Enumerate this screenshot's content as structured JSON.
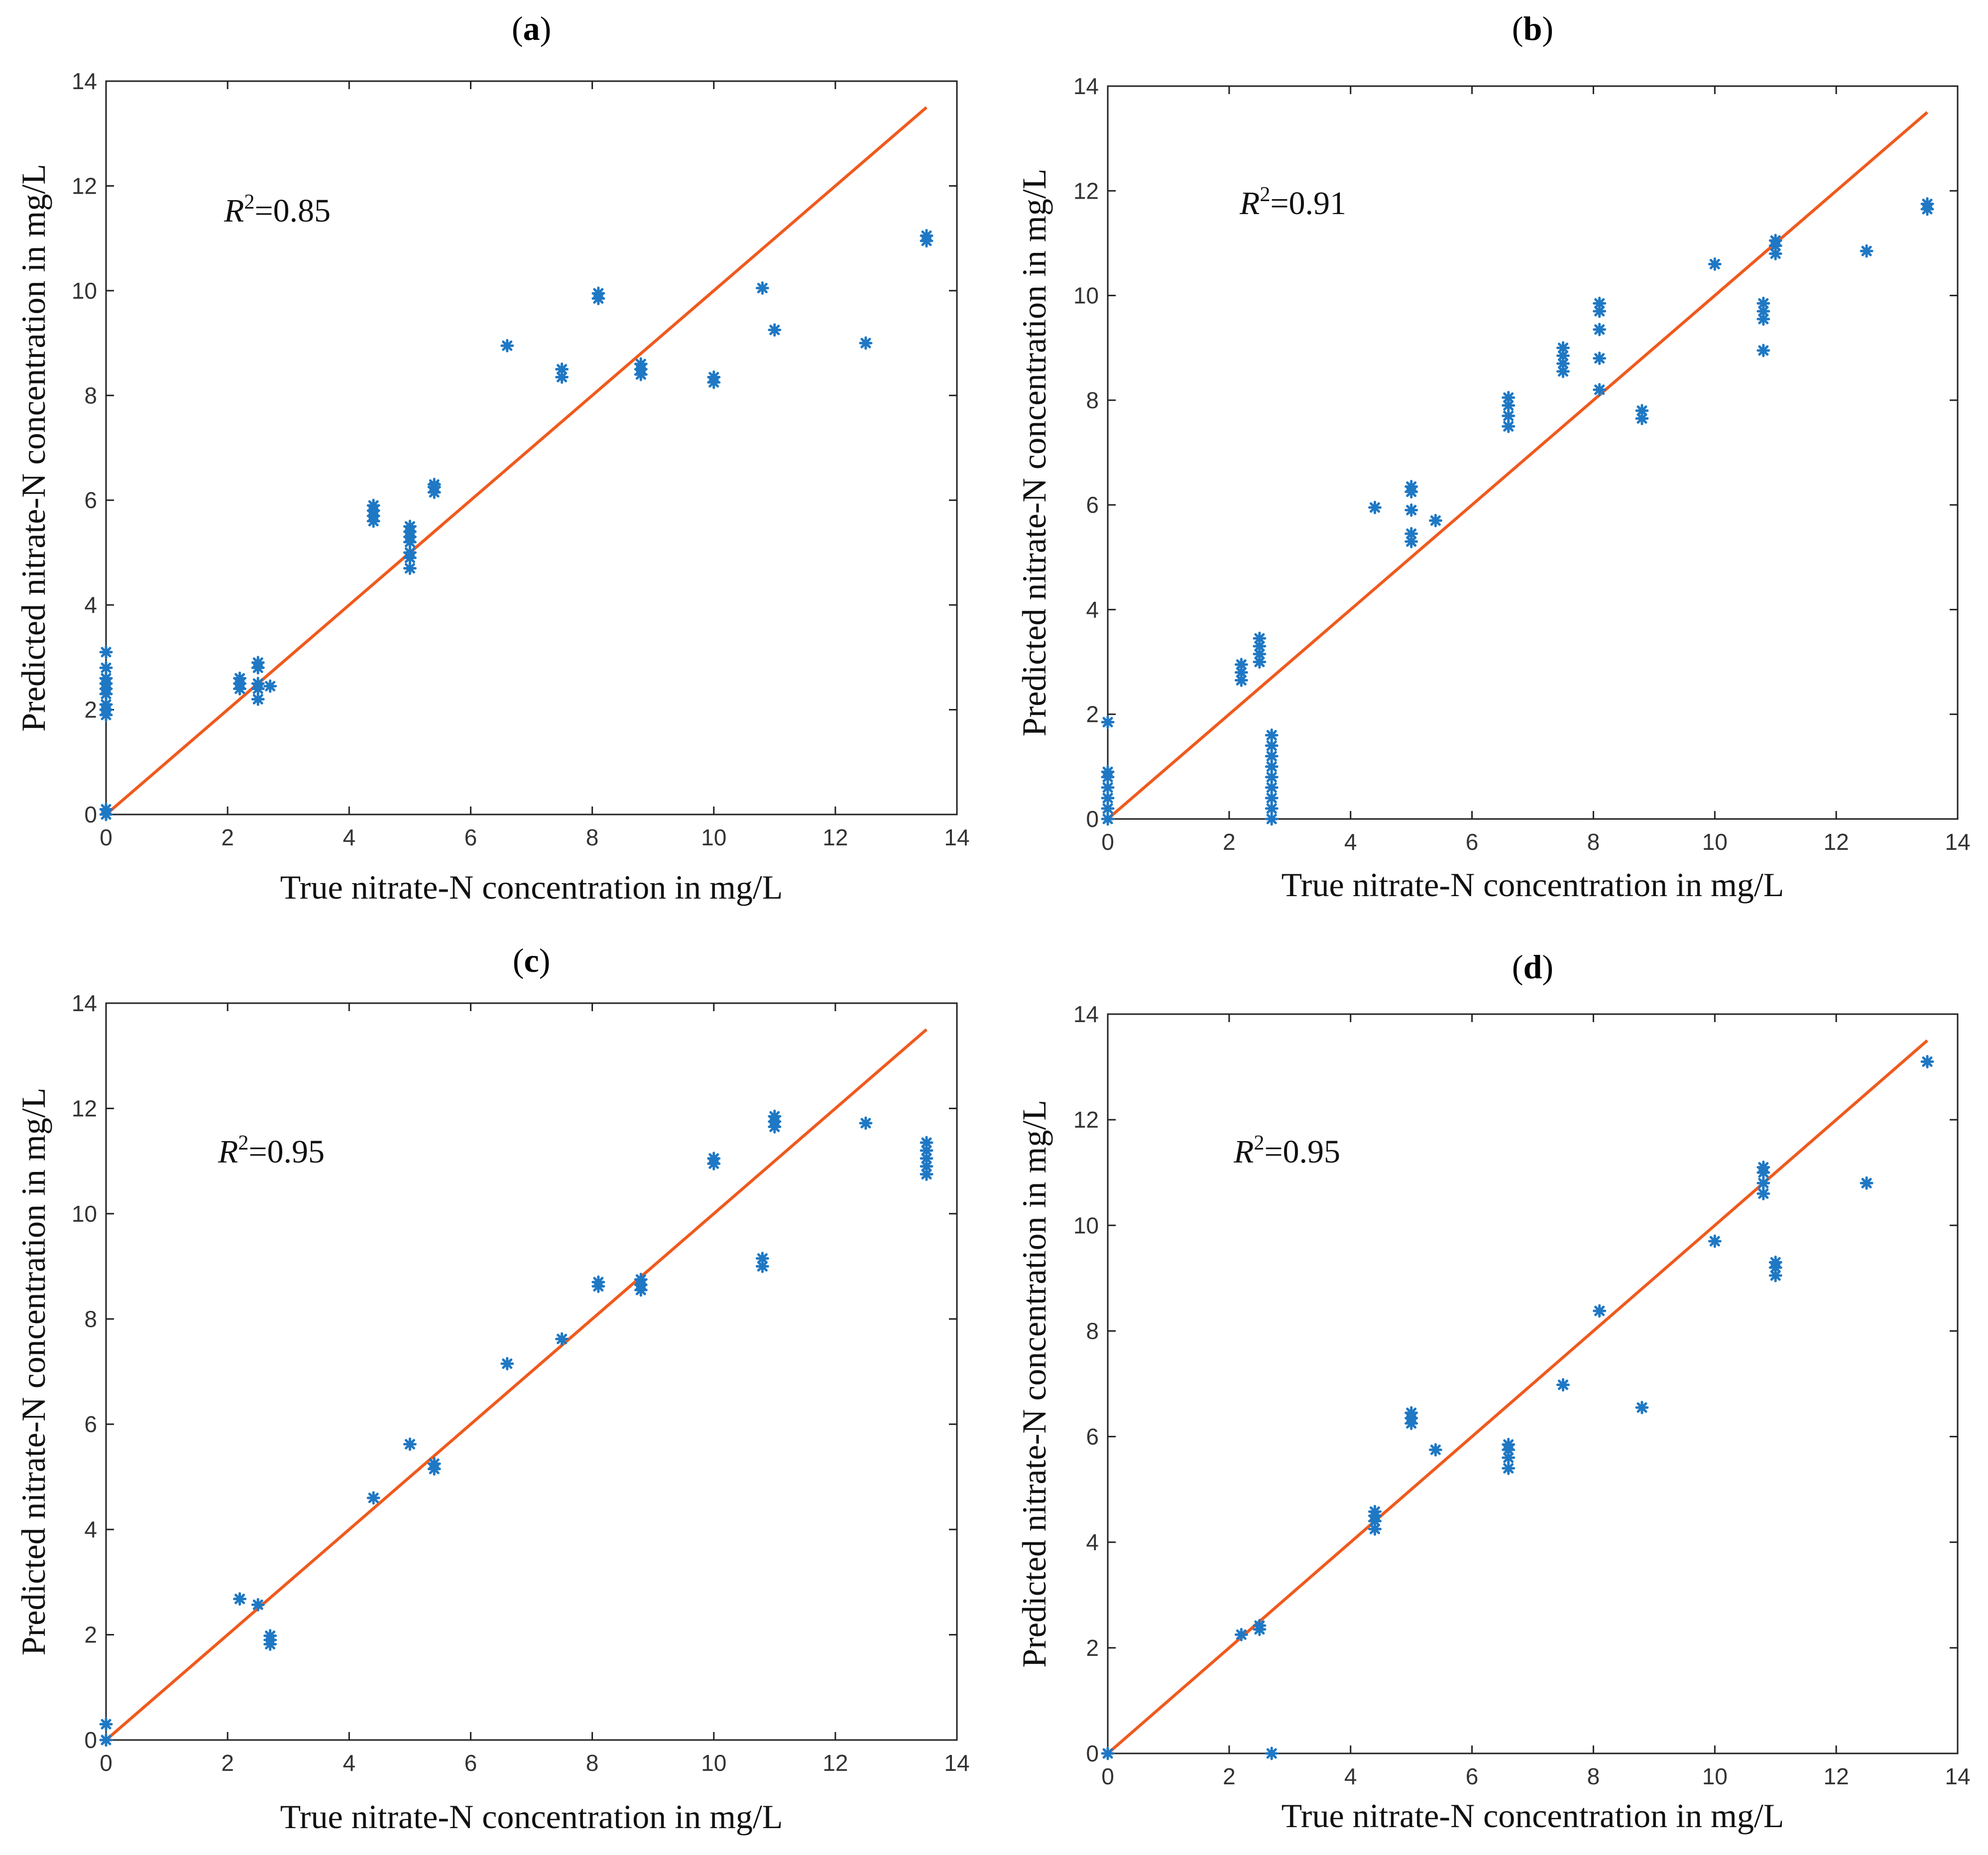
{
  "colors": {
    "fit_line": "#f05a1e",
    "markers": "#1f78c4",
    "axes": "#222222"
  },
  "chart_data": [
    {
      "type": "scatter",
      "panel_label": "a",
      "annotation": "R²=0.85",
      "annotation_var": "R",
      "annotation_sup": "2",
      "annotation_value": "=0.85",
      "xlabel": "True nitrate-N concentration in mg/L",
      "ylabel": "Predicted nitrate-N concentration in mg/L",
      "xlim": [
        0,
        14
      ],
      "ylim": [
        0,
        14
      ],
      "xticks": [
        0,
        2,
        4,
        6,
        8,
        10,
        12,
        14
      ],
      "yticks": [
        0,
        2,
        4,
        6,
        8,
        10,
        12,
        14
      ],
      "line": {
        "x": [
          0,
          13.5
        ],
        "y": [
          0,
          13.5
        ]
      },
      "points": [
        [
          0,
          0
        ],
        [
          0,
          0.1
        ],
        [
          0,
          1.9
        ],
        [
          0,
          2.0
        ],
        [
          0,
          2.1
        ],
        [
          0,
          2.3
        ],
        [
          0,
          2.4
        ],
        [
          0,
          2.5
        ],
        [
          0,
          2.6
        ],
        [
          0,
          2.8
        ],
        [
          0,
          3.1
        ],
        [
          2.2,
          2.4
        ],
        [
          2.2,
          2.5
        ],
        [
          2.2,
          2.6
        ],
        [
          2.5,
          2.2
        ],
        [
          2.5,
          2.4
        ],
        [
          2.5,
          2.5
        ],
        [
          2.5,
          2.8
        ],
        [
          2.5,
          2.9
        ],
        [
          2.7,
          2.45
        ],
        [
          4.4,
          5.6
        ],
        [
          4.4,
          5.7
        ],
        [
          4.4,
          5.8
        ],
        [
          4.4,
          5.9
        ],
        [
          5,
          4.7
        ],
        [
          5,
          4.9
        ],
        [
          5,
          5.0
        ],
        [
          5,
          5.2
        ],
        [
          5,
          5.3
        ],
        [
          5,
          5.4
        ],
        [
          5,
          5.5
        ],
        [
          5.4,
          6.15
        ],
        [
          5.4,
          6.25
        ],
        [
          5.4,
          6.3
        ],
        [
          6.6,
          8.95
        ],
        [
          7.5,
          8.35
        ],
        [
          7.5,
          8.5
        ],
        [
          8.1,
          9.85
        ],
        [
          8.1,
          9.95
        ],
        [
          8.8,
          8.4
        ],
        [
          8.8,
          8.5
        ],
        [
          8.8,
          8.6
        ],
        [
          10,
          8.25
        ],
        [
          10,
          8.35
        ],
        [
          10.8,
          10.05
        ],
        [
          11,
          9.25
        ],
        [
          12.5,
          9.0
        ],
        [
          13.5,
          10.95
        ],
        [
          13.5,
          11.05
        ]
      ]
    },
    {
      "type": "scatter",
      "panel_label": "b",
      "annotation": "R²=0.91",
      "annotation_var": "R",
      "annotation_sup": "2",
      "annotation_value": "=0.91",
      "xlabel": "True nitrate-N concentration in mg/L",
      "ylabel": "Predicted nitrate-N concentration in mg/L",
      "xlim": [
        0,
        14
      ],
      "ylim": [
        0,
        14
      ],
      "xticks": [
        0,
        2,
        4,
        6,
        8,
        10,
        12,
        14
      ],
      "yticks": [
        0,
        2,
        4,
        6,
        8,
        10,
        12,
        14
      ],
      "line": {
        "x": [
          0,
          13.5
        ],
        "y": [
          0,
          13.5
        ]
      },
      "points": [
        [
          0,
          0
        ],
        [
          0,
          0.2
        ],
        [
          0,
          0.4
        ],
        [
          0,
          0.6
        ],
        [
          0,
          0.8
        ],
        [
          0,
          0.9
        ],
        [
          0,
          1.85
        ],
        [
          2.2,
          2.65
        ],
        [
          2.2,
          2.8
        ],
        [
          2.2,
          2.95
        ],
        [
          2.5,
          3.0
        ],
        [
          2.5,
          3.15
        ],
        [
          2.5,
          3.3
        ],
        [
          2.5,
          3.45
        ],
        [
          2.7,
          0
        ],
        [
          2.7,
          0.2
        ],
        [
          2.7,
          0.4
        ],
        [
          2.7,
          0.6
        ],
        [
          2.7,
          0.8
        ],
        [
          2.7,
          1.0
        ],
        [
          2.7,
          1.2
        ],
        [
          2.7,
          1.4
        ],
        [
          2.7,
          1.6
        ],
        [
          4.4,
          5.95
        ],
        [
          5,
          5.3
        ],
        [
          5,
          5.45
        ],
        [
          5,
          5.9
        ],
        [
          5,
          6.25
        ],
        [
          5,
          6.35
        ],
        [
          5.4,
          5.7
        ],
        [
          6.6,
          7.5
        ],
        [
          6.6,
          7.7
        ],
        [
          6.6,
          7.9
        ],
        [
          6.6,
          8.05
        ],
        [
          7.5,
          8.55
        ],
        [
          7.5,
          8.7
        ],
        [
          7.5,
          8.85
        ],
        [
          7.5,
          9.0
        ],
        [
          8.1,
          8.2
        ],
        [
          8.1,
          8.8
        ],
        [
          8.1,
          9.35
        ],
        [
          8.1,
          9.7
        ],
        [
          8.1,
          9.85
        ],
        [
          8.8,
          7.65
        ],
        [
          8.8,
          7.8
        ],
        [
          10,
          10.6
        ],
        [
          10.8,
          8.95
        ],
        [
          10.8,
          9.55
        ],
        [
          10.8,
          9.7
        ],
        [
          10.8,
          9.85
        ],
        [
          11,
          10.8
        ],
        [
          11,
          10.95
        ],
        [
          11,
          11.05
        ],
        [
          12.5,
          10.85
        ],
        [
          13.5,
          11.65
        ],
        [
          13.5,
          11.75
        ]
      ]
    },
    {
      "type": "scatter",
      "panel_label": "c",
      "annotation": "R²=0.95",
      "annotation_var": "R",
      "annotation_sup": "2",
      "annotation_value": "=0.95",
      "xlabel": "True nitrate-N concentration in mg/L",
      "ylabel": "Predicted nitrate-N concentration in mg/L",
      "xlim": [
        0,
        14
      ],
      "ylim": [
        0,
        14
      ],
      "xticks": [
        0,
        2,
        4,
        6,
        8,
        10,
        12,
        14
      ],
      "yticks": [
        0,
        2,
        4,
        6,
        8,
        10,
        12,
        14
      ],
      "line": {
        "x": [
          0,
          13.5
        ],
        "y": [
          0,
          13.5
        ]
      },
      "points": [
        [
          0,
          0
        ],
        [
          0,
          0.3
        ],
        [
          2.2,
          2.68
        ],
        [
          2.5,
          2.57
        ],
        [
          2.7,
          1.82
        ],
        [
          2.7,
          1.9
        ],
        [
          2.7,
          1.98
        ],
        [
          4.4,
          4.6
        ],
        [
          5,
          5.62
        ],
        [
          5.4,
          5.15
        ],
        [
          5.4,
          5.25
        ],
        [
          6.6,
          7.15
        ],
        [
          7.5,
          7.62
        ],
        [
          8.1,
          8.62
        ],
        [
          8.1,
          8.7
        ],
        [
          8.8,
          8.55
        ],
        [
          8.8,
          8.65
        ],
        [
          8.8,
          8.75
        ],
        [
          10,
          10.95
        ],
        [
          10,
          11.05
        ],
        [
          10.8,
          9.0
        ],
        [
          10.8,
          9.15
        ],
        [
          11,
          11.65
        ],
        [
          11,
          11.75
        ],
        [
          11,
          11.85
        ],
        [
          12.5,
          11.72
        ],
        [
          13.5,
          10.75
        ],
        [
          13.5,
          10.9
        ],
        [
          13.5,
          11.05
        ],
        [
          13.5,
          11.2
        ],
        [
          13.5,
          11.35
        ]
      ]
    },
    {
      "type": "scatter",
      "panel_label": "d",
      "annotation": "R²=0.95",
      "annotation_var": "R",
      "annotation_sup": "2",
      "annotation_value": "=0.95",
      "xlabel": "True nitrate-N concentration in mg/L",
      "ylabel": "Predicted nitrate-N concentration in mg/L",
      "xlim": [
        0,
        14
      ],
      "ylim": [
        0,
        14
      ],
      "xticks": [
        0,
        2,
        4,
        6,
        8,
        10,
        12,
        14
      ],
      "yticks": [
        0,
        2,
        4,
        6,
        8,
        10,
        12,
        14
      ],
      "line": {
        "x": [
          0,
          13.5
        ],
        "y": [
          0,
          13.5
        ]
      },
      "points": [
        [
          0,
          0
        ],
        [
          2.2,
          2.25
        ],
        [
          2.5,
          2.35
        ],
        [
          2.5,
          2.42
        ],
        [
          2.7,
          0
        ],
        [
          4.4,
          4.25
        ],
        [
          4.4,
          4.4
        ],
        [
          4.4,
          4.5
        ],
        [
          4.4,
          4.58
        ],
        [
          5,
          6.25
        ],
        [
          5,
          6.35
        ],
        [
          5,
          6.45
        ],
        [
          5.4,
          5.75
        ],
        [
          6.6,
          5.4
        ],
        [
          6.6,
          5.6
        ],
        [
          6.6,
          5.75
        ],
        [
          6.6,
          5.85
        ],
        [
          7.5,
          6.98
        ],
        [
          8.1,
          8.38
        ],
        [
          8.8,
          6.55
        ],
        [
          10,
          9.7
        ],
        [
          10.8,
          10.6
        ],
        [
          10.8,
          10.8
        ],
        [
          10.8,
          11.0
        ],
        [
          10.8,
          11.1
        ],
        [
          11,
          9.05
        ],
        [
          11,
          9.2
        ],
        [
          11,
          9.3
        ],
        [
          12.5,
          10.8
        ],
        [
          13.5,
          13.1
        ]
      ]
    }
  ]
}
